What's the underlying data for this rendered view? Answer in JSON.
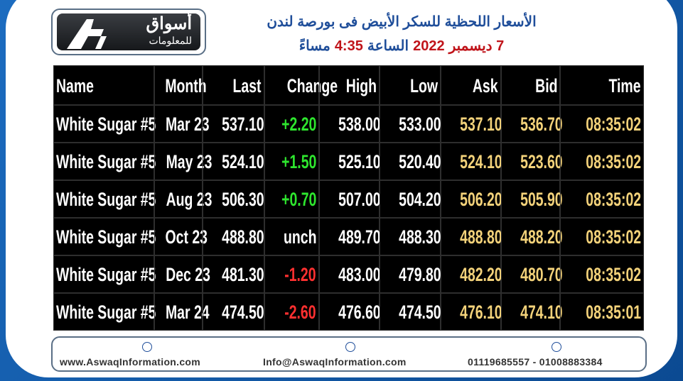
{
  "header": {
    "logo_title": "أسواق",
    "logo_subtitle": "للمعلومات",
    "title": "الأسعار اللحظية للسكر الأبيض فى بورصة لندن",
    "subtitle_parts": [
      {
        "text": "7 ديسمبر",
        "color": "#c0141a"
      },
      {
        "text": "2022",
        "color": "#c0141a"
      },
      {
        "text": "الساعة",
        "color": "#1f4e9a"
      },
      {
        "text": "4:35",
        "color": "#c0141a"
      },
      {
        "text": "مساءً",
        "color": "#1f4e9a"
      }
    ]
  },
  "table": {
    "columns": [
      "Name",
      "Month",
      "Last",
      "Change",
      "High",
      "Low",
      "Ask",
      "Bid",
      "Time"
    ],
    "rows": [
      [
        "White Sugar #5",
        "Mar 23",
        "537.10",
        "+2.20",
        "538.00",
        "533.00",
        "537.10",
        "536.70",
        "08:35:02"
      ],
      [
        "White Sugar #5",
        "May 23",
        "524.10",
        "+1.50",
        "525.10",
        "520.40",
        "524.10",
        "523.60",
        "08:35:02"
      ],
      [
        "White Sugar #5",
        "Aug 23",
        "506.30",
        "+0.70",
        "507.00",
        "504.20",
        "506.20",
        "505.90",
        "08:35:02"
      ],
      [
        "White Sugar #5",
        "Oct 23",
        "488.80",
        "unch",
        "489.70",
        "488.30",
        "488.80",
        "488.20",
        "08:35:02"
      ],
      [
        "White Sugar #5",
        "Dec 23",
        "481.30",
        "-1.20",
        "483.00",
        "479.80",
        "482.20",
        "480.70",
        "08:35:02"
      ],
      [
        "White Sugar #5",
        "Mar 24",
        "474.50",
        "-2.60",
        "476.60",
        "474.50",
        "476.10",
        "474.10",
        "08:35:01"
      ]
    ]
  },
  "footer": {
    "website": "www.AswaqInformation.com",
    "email": "Info@AswaqInformation.com",
    "phones": "01119685557 - 01008883384"
  }
}
